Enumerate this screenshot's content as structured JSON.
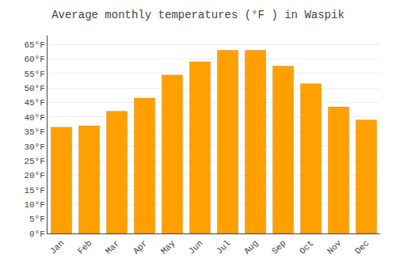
{
  "chart_data": {
    "type": "bar",
    "title": "Average monthly temperatures (°F ) in Waspik",
    "categories": [
      "Jan",
      "Feb",
      "Mar",
      "Apr",
      "May",
      "Jun",
      "Jul",
      "Aug",
      "Sep",
      "Oct",
      "Nov",
      "Dec"
    ],
    "values": [
      36.5,
      37.0,
      42.0,
      46.5,
      54.5,
      59.0,
      63.0,
      63.0,
      57.5,
      51.5,
      43.5,
      39.0
    ],
    "color": "#FFA000",
    "ylim": [
      0,
      68
    ],
    "yticks": [
      {
        "value": 0,
        "label": "0°F"
      },
      {
        "value": 5,
        "label": "5°F"
      },
      {
        "value": 10,
        "label": "10°F"
      },
      {
        "value": 15,
        "label": "15°F"
      },
      {
        "value": 20,
        "label": "20°F"
      },
      {
        "value": 25,
        "label": "25°F"
      },
      {
        "value": 30,
        "label": "30°F"
      },
      {
        "value": 35,
        "label": "35°F"
      },
      {
        "value": 40,
        "label": "40°F"
      },
      {
        "value": 45,
        "label": "45°F"
      },
      {
        "value": 50,
        "label": "50°F"
      },
      {
        "value": 55,
        "label": "55°F"
      },
      {
        "value": 60,
        "label": "60°F"
      },
      {
        "value": 65,
        "label": "65°F"
      }
    ],
    "grid": true
  }
}
